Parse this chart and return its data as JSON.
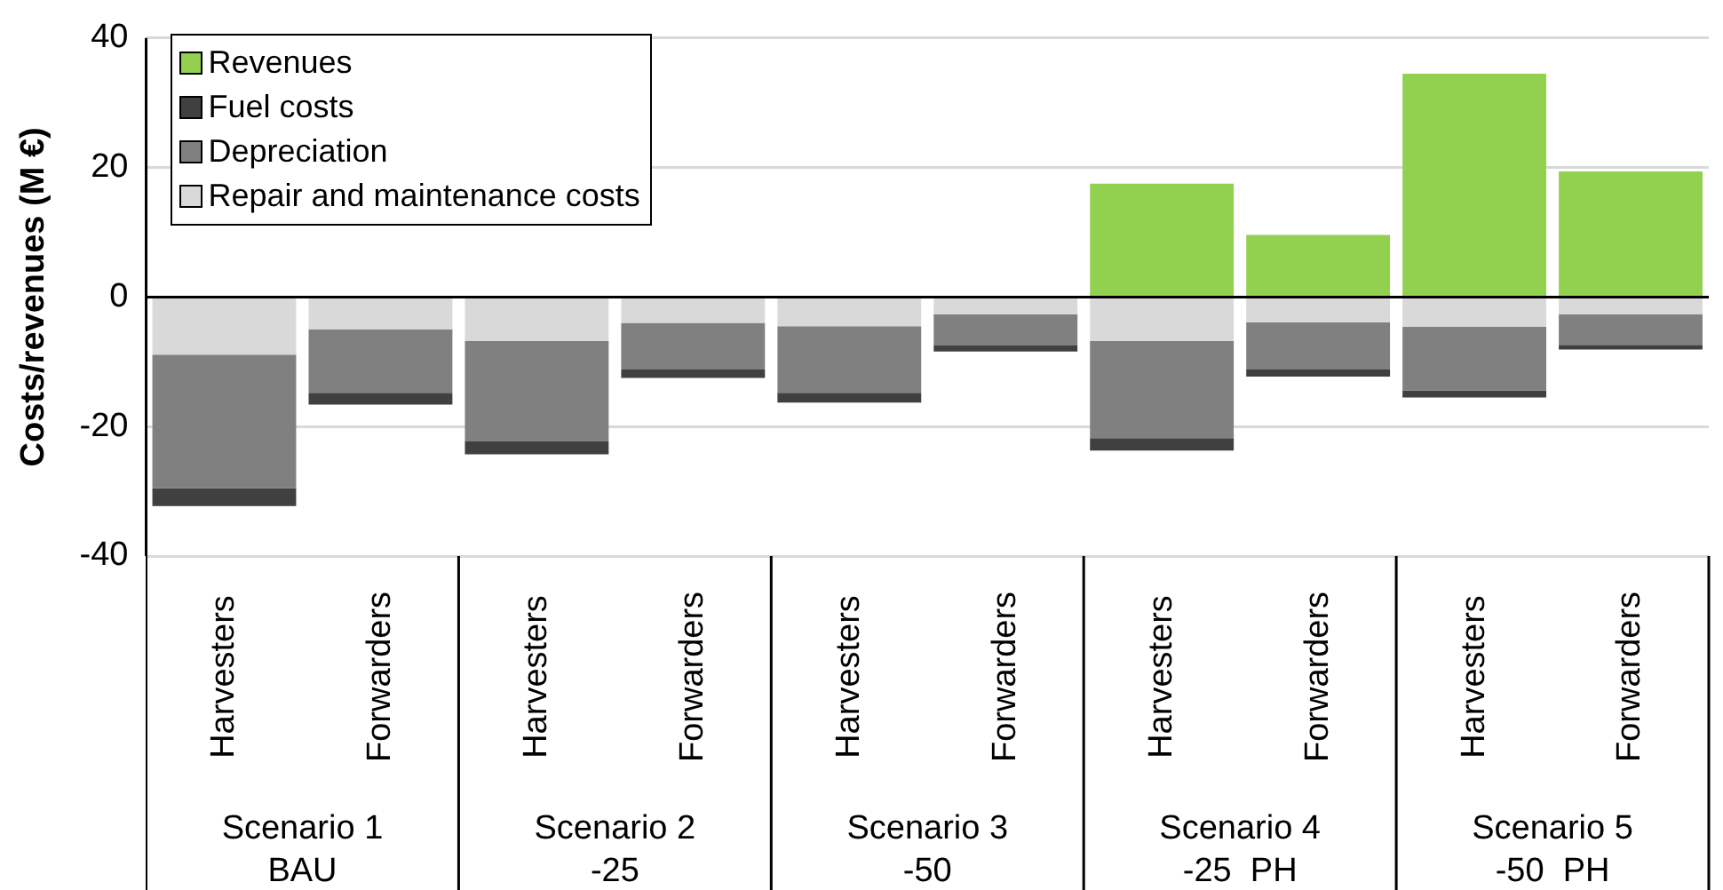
{
  "chart_data": {
    "type": "bar",
    "ylabel": "Costs/revenues (M €)",
    "stacked": true,
    "categories": [
      "Harvesters",
      "Forwarders",
      "Harvesters",
      "Forwarders",
      "Harvesters",
      "Forwarders",
      "Harvesters",
      "Forwarders",
      "Harvesters",
      "Forwarders"
    ],
    "series": [
      {
        "name": "Repair and maintenance costs",
        "color": "#d9d9d9",
        "values": [
          -8.9,
          -5.0,
          -6.8,
          -4.0,
          -4.5,
          -2.7,
          -6.8,
          -3.9,
          -4.6,
          -2.7
        ]
      },
      {
        "name": "Depreciation",
        "color": "#808080",
        "values": [
          -20.6,
          -9.8,
          -15.5,
          -7.2,
          -10.3,
          -4.8,
          -15.0,
          -7.3,
          -9.8,
          -4.7
        ]
      },
      {
        "name": "Fuel costs",
        "color": "#404040",
        "values": [
          -2.8,
          -1.8,
          -2.0,
          -1.3,
          -1.5,
          -0.9,
          -1.9,
          -1.1,
          -1.1,
          -0.7
        ]
      },
      {
        "name": "Revenues",
        "color": "#92d050",
        "values": [
          0,
          0,
          0,
          0,
          0,
          0,
          17.5,
          9.6,
          34.5,
          19.4
        ]
      }
    ],
    "annotations": [
      "Scenario 1\nBAU",
      "Scenario 2\n-25",
      "Scenario 3\n-50",
      "Scenario 4\n-25  PH",
      "Scenario 5\n-50  PH"
    ],
    "ylim": [
      -40,
      40
    ],
    "yticks": [
      -40,
      -20,
      0,
      20,
      40
    ],
    "grid": "y",
    "legend": "top left"
  }
}
